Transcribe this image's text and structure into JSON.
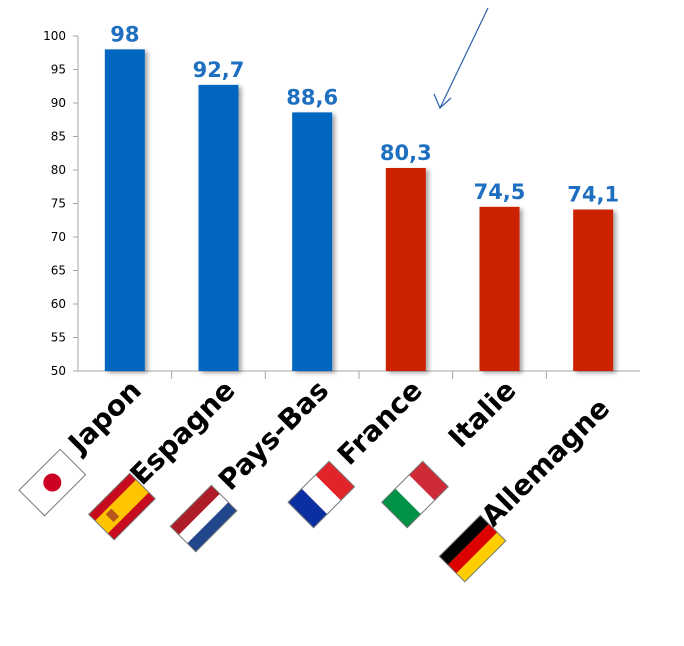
{
  "chart_data": {
    "type": "bar",
    "categories": [
      "Japon",
      "Espagne",
      "Pays-Bas",
      "France",
      "Italie",
      "Allemagne"
    ],
    "values": [
      98,
      92.7,
      88.6,
      80.3,
      74.5,
      74.1
    ],
    "value_labels": [
      "98",
      "92,7",
      "88,6",
      "80,3",
      "74,5",
      "74,1"
    ],
    "ylim": [
      50,
      100
    ],
    "yticks": [
      50,
      55,
      60,
      65,
      70,
      75,
      80,
      85,
      90,
      95,
      100
    ],
    "bar_colors": [
      "#0066c0",
      "#0066c0",
      "#0066c0",
      "#cc2200",
      "#cc2200",
      "#cc2200"
    ],
    "label_color": "#1f6fc0",
    "flags": [
      "japan-flag-icon",
      "spain-flag-icon",
      "netherlands-flag-icon",
      "france-flag-icon",
      "italy-flag-icon",
      "germany-flag-icon"
    ],
    "grid": false,
    "annotation": "arrow pointing to France bar"
  }
}
